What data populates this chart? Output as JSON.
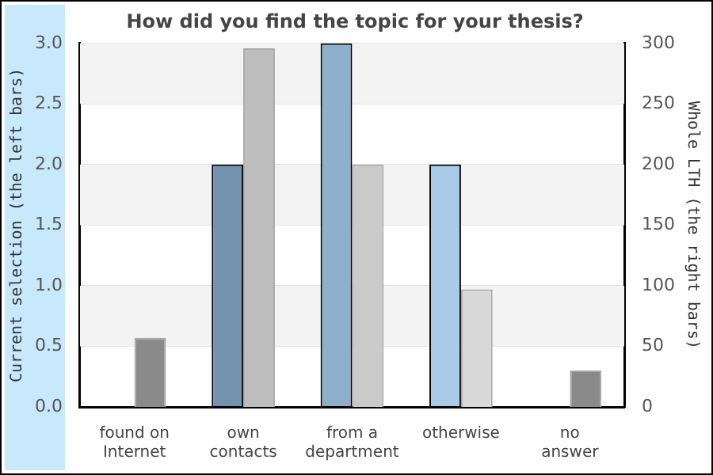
{
  "chart_data": {
    "type": "bar",
    "title": "How did you find the topic for your thesis?",
    "ylabel": "Current selection (the left bars)",
    "y2label": "Whole LTH (the right bars)",
    "categories": [
      "found on\nInternet",
      "own\ncontacts",
      "from a\ndepartment",
      "otherwise",
      "no\nanswer"
    ],
    "series": [
      {
        "colors": [
          "#7493ae",
          "#7493ae",
          "#8fb0cc",
          "#a9cbe7",
          "#a9cbe7"
        ],
        "values": [
          0,
          2,
          3,
          2,
          0
        ]
      },
      {
        "axis": "y2",
        "colors": [
          "#8a8a8a",
          "#bdbdbd",
          "#cacaca",
          "#d8d8d8",
          "#8a8a8a"
        ],
        "values": [
          57,
          296,
          200,
          97,
          30
        ]
      }
    ],
    "ylim": [
      0,
      3
    ],
    "yticks": [
      {
        "value": 0,
        "label": "0.0"
      },
      {
        "value": 0.5,
        "label": "0.5"
      },
      {
        "value": 1,
        "label": "1.0"
      },
      {
        "value": 1.5,
        "label": "1.5"
      },
      {
        "value": 2,
        "label": "2.0"
      },
      {
        "value": 2.5,
        "label": "2.5"
      },
      {
        "value": 3,
        "label": "3.0"
      }
    ],
    "y2lim": [
      0,
      300
    ],
    "y2ticks": [
      0,
      50,
      100,
      150,
      200,
      250,
      300
    ],
    "grid": "y",
    "legend": false
  }
}
